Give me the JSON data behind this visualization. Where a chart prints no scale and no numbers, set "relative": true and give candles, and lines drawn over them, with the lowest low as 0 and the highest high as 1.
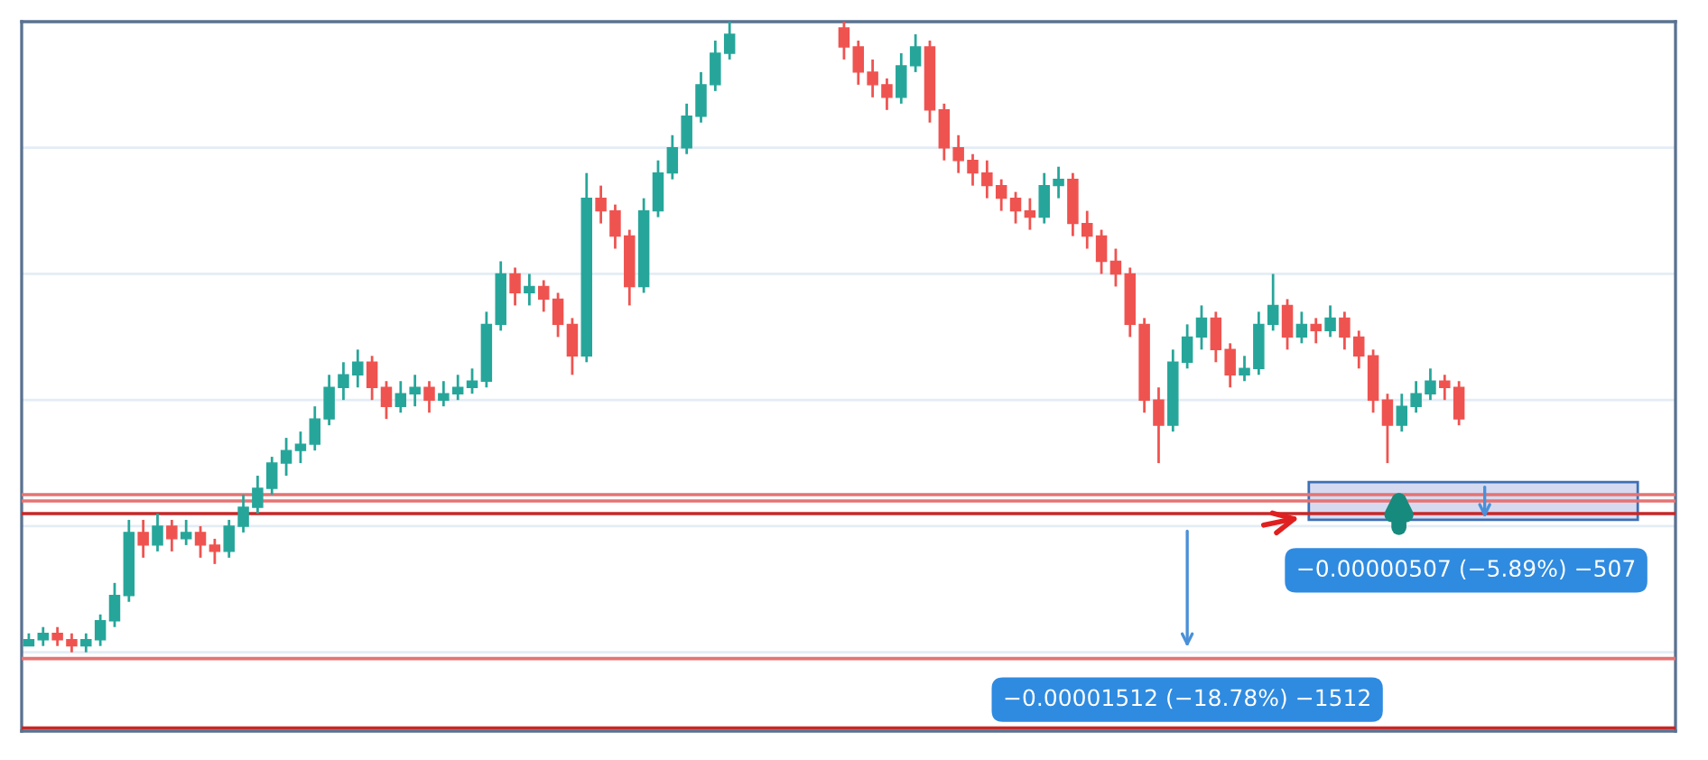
{
  "chart_data": {
    "type": "candlestick",
    "relative": true,
    "grid": "y",
    "colors": [
      "#26a69a",
      "#26a69a",
      "#ef5350",
      "#ef5350",
      "#26a69a",
      "#26a69a",
      "#26a69a",
      "#26a69a",
      "#ef5350",
      "#26a69a",
      "#ef5350",
      "#26a69a",
      "#ef5350",
      "#ef5350",
      "#26a69a",
      "#26a69a",
      "#26a69a",
      "#26a69a",
      "#26a69a",
      "#26a69a",
      "#26a69a",
      "#26a69a",
      "#26a69a",
      "#26a69a",
      "#ef5350",
      "#ef5350",
      "#26a69a",
      "#26a69a",
      "#ef5350",
      "#26a69a",
      "#26a69a",
      "#26a69a",
      "#26a69a",
      "#26a69a",
      "#ef5350",
      "#26a69a",
      "#ef5350",
      "#ef5350",
      "#ef5350",
      "#26a69a",
      "#ef5350",
      "#ef5350",
      "#ef5350",
      "#26a69a",
      "#26a69a",
      "#26a69a",
      "#26a69a",
      "#26a69a",
      "#26a69a",
      "#26a69a",
      null,
      null,
      null,
      null,
      null,
      null,
      null,
      "#ef5350",
      "#ef5350",
      "#ef5350",
      "#ef5350",
      "#26a69a",
      "#26a69a",
      "#ef5350",
      "#ef5350",
      "#ef5350",
      "#ef5350",
      "#ef5350",
      "#ef5350",
      "#ef5350",
      "#ef5350",
      "#26a69a",
      "#26a69a",
      "#ef5350",
      "#ef5350",
      "#ef5350",
      "#ef5350",
      "#ef5350",
      "#ef5350",
      "#ef5350",
      "#26a69a",
      "#26a69a",
      "#26a69a",
      "#ef5350",
      "#ef5350",
      "#26a69a",
      "#26a69a",
      "#26a69a",
      "#ef5350",
      "#26a69a",
      "#ef5350",
      "#26a69a",
      "#ef5350",
      "#ef5350",
      "#ef5350",
      "#ef5350",
      "#26a69a",
      "#26a69a",
      "#26a69a",
      "#ef5350",
      "#ef5350"
    ],
    "categories": [
      null,
      null,
      null,
      null,
      null,
      null,
      null,
      null,
      null,
      null,
      null,
      null,
      null,
      null,
      null,
      null,
      null,
      null,
      null,
      null,
      null,
      null,
      null,
      null,
      null,
      null,
      null,
      null,
      null,
      null,
      null,
      null,
      null,
      null,
      null,
      null,
      null,
      null,
      null,
      null,
      null,
      null,
      null,
      null,
      null,
      null,
      null,
      null,
      null,
      null,
      null,
      null,
      null,
      null,
      null,
      null,
      null,
      null,
      null,
      null,
      null,
      null,
      null,
      null,
      null,
      null,
      null,
      null,
      null,
      null,
      null,
      null,
      null,
      null,
      null,
      null,
      null,
      null,
      null,
      null,
      null,
      null,
      null,
      null,
      null,
      null,
      null,
      null,
      null,
      null,
      null,
      null,
      null,
      null,
      null,
      null,
      null,
      null,
      null,
      null,
      null
    ],
    "ohlc": [
      [
        0.01,
        0.03,
        0.01,
        0.02
      ],
      [
        0.02,
        0.04,
        0.01,
        0.03
      ],
      [
        0.03,
        0.04,
        0.01,
        0.02
      ],
      [
        0.02,
        0.03,
        0.0,
        0.01
      ],
      [
        0.01,
        0.03,
        0.0,
        0.02
      ],
      [
        0.02,
        0.06,
        0.01,
        0.05
      ],
      [
        0.05,
        0.11,
        0.04,
        0.09
      ],
      [
        0.09,
        0.21,
        0.08,
        0.19
      ],
      [
        0.19,
        0.21,
        0.15,
        0.17
      ],
      [
        0.17,
        0.22,
        0.16,
        0.2
      ],
      [
        0.2,
        0.21,
        0.16,
        0.18
      ],
      [
        0.18,
        0.21,
        0.17,
        0.19
      ],
      [
        0.19,
        0.2,
        0.15,
        0.17
      ],
      [
        0.17,
        0.18,
        0.14,
        0.16
      ],
      [
        0.16,
        0.21,
        0.15,
        0.2
      ],
      [
        0.2,
        0.25,
        0.19,
        0.23
      ],
      [
        0.23,
        0.28,
        0.22,
        0.26
      ],
      [
        0.26,
        0.31,
        0.25,
        0.3
      ],
      [
        0.3,
        0.34,
        0.28,
        0.32
      ],
      [
        0.32,
        0.35,
        0.3,
        0.33
      ],
      [
        0.33,
        0.39,
        0.32,
        0.37
      ],
      [
        0.37,
        0.44,
        0.36,
        0.42
      ],
      [
        0.42,
        0.46,
        0.4,
        0.44
      ],
      [
        0.44,
        0.48,
        0.42,
        0.46
      ],
      [
        0.46,
        0.47,
        0.4,
        0.42
      ],
      [
        0.42,
        0.43,
        0.37,
        0.39
      ],
      [
        0.39,
        0.43,
        0.38,
        0.41
      ],
      [
        0.41,
        0.44,
        0.39,
        0.42
      ],
      [
        0.42,
        0.43,
        0.38,
        0.4
      ],
      [
        0.4,
        0.43,
        0.39,
        0.41
      ],
      [
        0.41,
        0.44,
        0.4,
        0.42
      ],
      [
        0.42,
        0.45,
        0.41,
        0.43
      ],
      [
        0.43,
        0.54,
        0.42,
        0.52
      ],
      [
        0.52,
        0.62,
        0.51,
        0.6
      ],
      [
        0.6,
        0.61,
        0.55,
        0.57
      ],
      [
        0.57,
        0.6,
        0.55,
        0.58
      ],
      [
        0.58,
        0.59,
        0.54,
        0.56
      ],
      [
        0.56,
        0.57,
        0.5,
        0.52
      ],
      [
        0.52,
        0.53,
        0.44,
        0.47
      ],
      [
        0.47,
        0.76,
        0.46,
        0.72
      ],
      [
        0.72,
        0.74,
        0.68,
        0.7
      ],
      [
        0.7,
        0.71,
        0.64,
        0.66
      ],
      [
        0.66,
        0.67,
        0.55,
        0.58
      ],
      [
        0.58,
        0.72,
        0.57,
        0.7
      ],
      [
        0.7,
        0.78,
        0.69,
        0.76
      ],
      [
        0.76,
        0.82,
        0.75,
        0.8
      ],
      [
        0.8,
        0.87,
        0.79,
        0.85
      ],
      [
        0.85,
        0.92,
        0.84,
        0.9
      ],
      [
        0.9,
        0.97,
        0.89,
        0.95
      ],
      [
        0.95,
        1.0,
        0.94,
        0.98
      ],
      null,
      null,
      null,
      null,
      null,
      null,
      null,
      [
        0.99,
        1.0,
        0.94,
        0.96
      ],
      [
        0.96,
        0.97,
        0.9,
        0.92
      ],
      [
        0.92,
        0.94,
        0.88,
        0.9
      ],
      [
        0.9,
        0.91,
        0.86,
        0.88
      ],
      [
        0.88,
        0.95,
        0.87,
        0.93
      ],
      [
        0.93,
        0.98,
        0.92,
        0.96
      ],
      [
        0.96,
        0.97,
        0.84,
        0.86
      ],
      [
        0.86,
        0.87,
        0.78,
        0.8
      ],
      [
        0.8,
        0.82,
        0.76,
        0.78
      ],
      [
        0.78,
        0.79,
        0.74,
        0.76
      ],
      [
        0.76,
        0.78,
        0.72,
        0.74
      ],
      [
        0.74,
        0.75,
        0.7,
        0.72
      ],
      [
        0.72,
        0.73,
        0.68,
        0.7
      ],
      [
        0.7,
        0.72,
        0.67,
        0.69
      ],
      [
        0.69,
        0.76,
        0.68,
        0.74
      ],
      [
        0.74,
        0.77,
        0.72,
        0.75
      ],
      [
        0.75,
        0.76,
        0.66,
        0.68
      ],
      [
        0.68,
        0.7,
        0.64,
        0.66
      ],
      [
        0.66,
        0.67,
        0.6,
        0.62
      ],
      [
        0.62,
        0.64,
        0.58,
        0.6
      ],
      [
        0.6,
        0.61,
        0.5,
        0.52
      ],
      [
        0.52,
        0.53,
        0.38,
        0.4
      ],
      [
        0.4,
        0.42,
        0.3,
        0.36
      ],
      [
        0.36,
        0.48,
        0.35,
        0.46
      ],
      [
        0.46,
        0.52,
        0.45,
        0.5
      ],
      [
        0.5,
        0.55,
        0.48,
        0.53
      ],
      [
        0.53,
        0.54,
        0.46,
        0.48
      ],
      [
        0.48,
        0.49,
        0.42,
        0.44
      ],
      [
        0.44,
        0.47,
        0.43,
        0.45
      ],
      [
        0.45,
        0.54,
        0.44,
        0.52
      ],
      [
        0.52,
        0.6,
        0.51,
        0.55
      ],
      [
        0.55,
        0.56,
        0.48,
        0.5
      ],
      [
        0.5,
        0.54,
        0.49,
        0.52
      ],
      [
        0.52,
        0.53,
        0.49,
        0.51
      ],
      [
        0.51,
        0.55,
        0.5,
        0.53
      ],
      [
        0.53,
        0.54,
        0.48,
        0.5
      ],
      [
        0.5,
        0.51,
        0.45,
        0.47
      ],
      [
        0.47,
        0.48,
        0.38,
        0.4
      ],
      [
        0.4,
        0.41,
        0.3,
        0.36
      ],
      [
        0.36,
        0.41,
        0.35,
        0.39
      ],
      [
        0.39,
        0.43,
        0.38,
        0.41
      ],
      [
        0.41,
        0.45,
        0.4,
        0.43
      ],
      [
        0.43,
        0.44,
        0.4,
        0.42
      ],
      [
        0.42,
        0.43,
        0.36,
        0.37
      ]
    ],
    "ref_lines": [
      {
        "axis": "y",
        "value": 0.25,
        "color": "#e57373"
      },
      {
        "axis": "y",
        "value": 0.24,
        "color": "#e57373"
      },
      {
        "axis": "y",
        "value": 0.22,
        "color": "#c62828"
      },
      {
        "axis": "y",
        "value": -0.01,
        "color": "#e57373"
      },
      {
        "axis": "y",
        "value": -0.12,
        "color": "#c62828"
      }
    ],
    "bands": [
      {
        "axis": "y",
        "from": 0.21,
        "to": 0.27,
        "color": "#d6daf0"
      }
    ],
    "annotations": [
      "−0.00000507 (−5.89%) −507",
      "−0.00001512 (−18.78%) −1512"
    ]
  }
}
